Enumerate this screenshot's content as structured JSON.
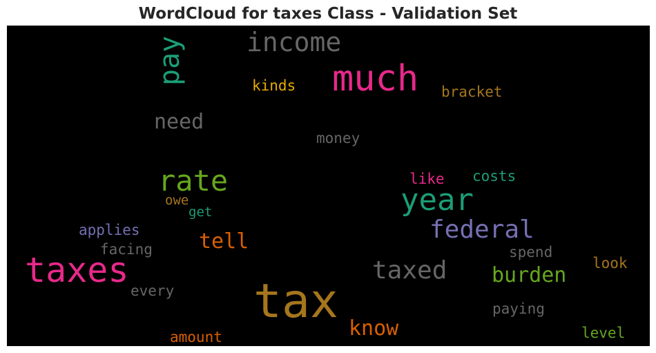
{
  "chart_data": {
    "type": "wordcloud",
    "title": "WordCloud for taxes Class - Validation Set",
    "background": "#000000",
    "words": [
      {
        "text": "tax",
        "color": "#a6761d"
      },
      {
        "text": "taxes",
        "color": "#e7298a"
      },
      {
        "text": "much",
        "color": "#e7298a"
      },
      {
        "text": "year",
        "color": "#1b9e77"
      },
      {
        "text": "rate",
        "color": "#66a61e"
      },
      {
        "text": "income",
        "color": "#666666"
      },
      {
        "text": "federal",
        "color": "#7570b3"
      },
      {
        "text": "taxed",
        "color": "#666666"
      },
      {
        "text": "pay",
        "color": "#1b9e77"
      },
      {
        "text": "need",
        "color": "#666666"
      },
      {
        "text": "know",
        "color": "#d95f02"
      },
      {
        "text": "burden",
        "color": "#66a61e"
      },
      {
        "text": "tell",
        "color": "#d95f02"
      },
      {
        "text": "bracket",
        "color": "#a6761d"
      },
      {
        "text": "kinds",
        "color": "#e6ab02"
      },
      {
        "text": "money",
        "color": "#666666"
      },
      {
        "text": "like",
        "color": "#e7298a"
      },
      {
        "text": "costs",
        "color": "#1b9e77"
      },
      {
        "text": "applies",
        "color": "#7570b3"
      },
      {
        "text": "facing",
        "color": "#666666"
      },
      {
        "text": "spend",
        "color": "#666666"
      },
      {
        "text": "look",
        "color": "#a6761d"
      },
      {
        "text": "every",
        "color": "#666666"
      },
      {
        "text": "paying",
        "color": "#666666"
      },
      {
        "text": "amount",
        "color": "#d95f02"
      },
      {
        "text": "level",
        "color": "#66a61e"
      },
      {
        "text": "owe",
        "color": "#a6761d"
      },
      {
        "text": "get",
        "color": "#1b9e77"
      }
    ]
  }
}
